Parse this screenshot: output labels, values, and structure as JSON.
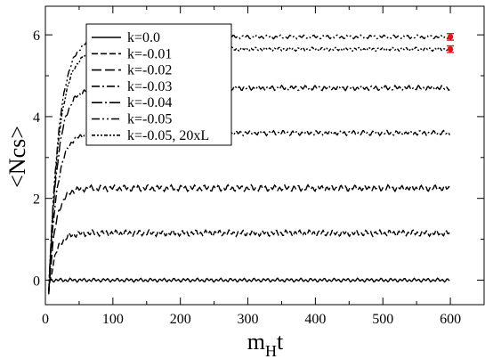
{
  "chart_data": {
    "type": "line",
    "xlabel_main": "m",
    "xlabel_sub": "H",
    "xlabel_tail": "t",
    "ylabel": "<Ncs>",
    "xlim": [
      0,
      650
    ],
    "ylim": [
      -0.6,
      6.7
    ],
    "x_ticks": [
      0,
      100,
      200,
      300,
      400,
      500,
      600
    ],
    "y_ticks": [
      0,
      2,
      4,
      6
    ],
    "grid": false,
    "legend_position": "top-left",
    "series": [
      {
        "name": "k=0.0",
        "dash": "",
        "plateau": 0.0,
        "start": 0.0,
        "tau": 4,
        "amp": 0.03
      },
      {
        "name": "k=-0.01",
        "dash": "7,3",
        "plateau": 1.15,
        "start": -0.3,
        "tau": 10,
        "amp": 0.05
      },
      {
        "name": "k=-0.02",
        "dash": "11,4",
        "plateau": 2.25,
        "start": -0.3,
        "tau": 10,
        "amp": 0.05
      },
      {
        "name": "k=-0.03",
        "dash": "9,3,2,3",
        "plateau": 3.6,
        "start": -0.3,
        "tau": 12,
        "amp": 0.04
      },
      {
        "name": "k=-0.04",
        "dash": "12,3,2,3",
        "plateau": 4.7,
        "start": -0.3,
        "tau": 13,
        "amp": 0.04
      },
      {
        "name": "k=-0.05",
        "dash": "9,3,2,3,2,3",
        "plateau": 5.95,
        "start": -0.3,
        "tau": 15,
        "amp": 0.03
      },
      {
        "name": "k=-0.05, 20xL",
        "dash": "4,2,2,2,2,2",
        "plateau": 5.65,
        "start": -0.3,
        "tau": 15,
        "amp": 0.03
      }
    ],
    "error_points": [
      {
        "x": 600,
        "y": 5.95,
        "err": 0.08,
        "color": "#e0141e"
      },
      {
        "x": 600,
        "y": 5.65,
        "err": 0.08,
        "color": "#e0141e"
      }
    ]
  }
}
